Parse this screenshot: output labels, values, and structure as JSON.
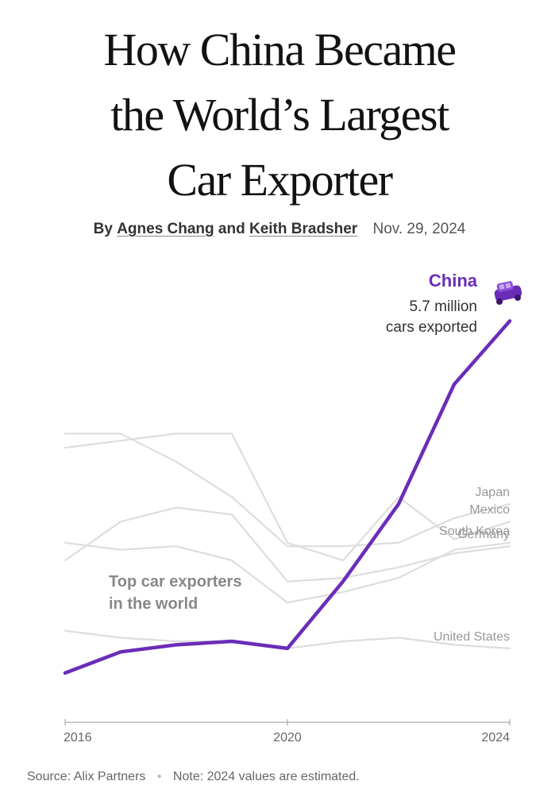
{
  "headline": {
    "line1": "How China Became",
    "line2": "the World’s Largest",
    "line3": "Car Exporter"
  },
  "byline": {
    "prefix": "By",
    "author1": "Agnes Chang",
    "conjunction": "and",
    "author2": "Keith Bradsher",
    "date": "Nov. 29, 2024"
  },
  "footer": {
    "source": "Source: Alix Partners",
    "separator": "•",
    "note": "Note: 2024 values are estimated."
  },
  "chart_data": {
    "type": "line",
    "title": "Top car exporters in the world",
    "x": [
      2016,
      2017,
      2018,
      2019,
      2020,
      2021,
      2022,
      2023,
      2024
    ],
    "x_ticks": [
      2016,
      2020,
      2024
    ],
    "y_unit": "million cars exported",
    "ylim": [
      0,
      6.2
    ],
    "y_axis_shown": false,
    "grid": false,
    "legend": "inline labels at line ends",
    "highlight": {
      "name": "China",
      "value_label": "5.7 million",
      "value_label2": "cars exported",
      "icon": "car-icon",
      "color": "#6a2db8"
    },
    "series": [
      {
        "name": "China",
        "values": [
          0.7,
          1.0,
          1.1,
          1.15,
          1.05,
          2.0,
          3.1,
          4.8,
          5.7
        ],
        "color": "#6a2db8"
      },
      {
        "name": "Japan",
        "values": [
          4.1,
          4.1,
          3.7,
          3.2,
          2.5,
          2.5,
          2.55,
          2.9,
          3.1
        ],
        "color": "#dddddd"
      },
      {
        "name": "Mexico",
        "values": [
          3.9,
          4.0,
          4.1,
          4.1,
          2.55,
          2.3,
          3.2,
          2.6,
          2.85
        ],
        "color": "#dddddd"
      },
      {
        "name": "Germany",
        "values": [
          2.3,
          2.85,
          3.05,
          2.95,
          2.0,
          2.05,
          2.2,
          2.4,
          2.5
        ],
        "color": "#dddddd"
      },
      {
        "name": "South Korea",
        "values": [
          2.55,
          2.45,
          2.5,
          2.3,
          1.7,
          1.85,
          2.05,
          2.45,
          2.55
        ],
        "color": "#dddddd"
      },
      {
        "name": "United States",
        "values": [
          1.3,
          1.2,
          1.15,
          1.15,
          1.05,
          1.15,
          1.2,
          1.1,
          1.05
        ],
        "color": "#dddddd"
      }
    ]
  }
}
